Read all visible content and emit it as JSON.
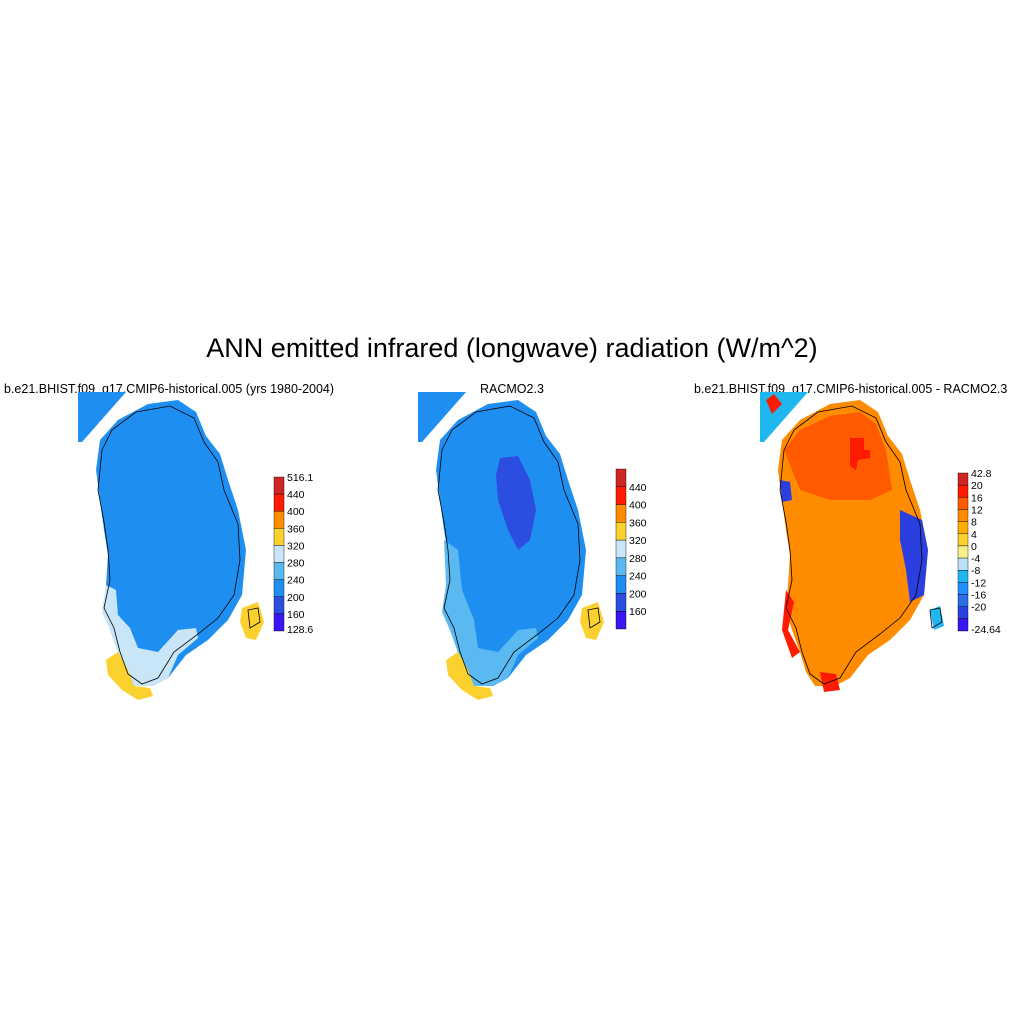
{
  "figure_title": "ANN emitted infrared (longwave) radiation (W/m^2)",
  "colors": {
    "abs_scale": [
      "#3a16f0",
      "#2b4ee0",
      "#1e8ff0",
      "#5ab9f0",
      "#c9e6f8",
      "#fad12e",
      "#ff8c00",
      "#ff1a00",
      "#cf2525"
    ],
    "diff_scale": [
      "#3a16f0",
      "#2b3fe0",
      "#2a6de5",
      "#1e90ff",
      "#1fb7f0",
      "#b9e1f8",
      "#f7f08a",
      "#fad12e",
      "#ffae00",
      "#ff8c00",
      "#ff5a00",
      "#ff1a00",
      "#cf2525"
    ],
    "coastline": "#000000"
  },
  "panels": [
    {
      "id": "model",
      "title": "b.e21.BHIST.f09_g17.CMIP6-historical.005 (yrs 1980-2004)",
      "colorbar_labels": [
        "516.1",
        "440",
        "400",
        "360",
        "320",
        "280",
        "240",
        "200",
        "160",
        "128.6"
      ]
    },
    {
      "id": "obs",
      "title": "RACMO2.3",
      "colorbar_labels": [
        "440",
        "400",
        "360",
        "320",
        "280",
        "240",
        "200",
        "160"
      ]
    },
    {
      "id": "diff",
      "title": "b.e21.BHIST.f09_g17.CMIP6-historical.005 - RACMO2.3",
      "colorbar_labels": [
        "42.8",
        "20",
        "16",
        "12",
        "8",
        "4",
        "0",
        "-4",
        "-8",
        "-12",
        "-16",
        "-20",
        "-24.64"
      ]
    }
  ]
}
